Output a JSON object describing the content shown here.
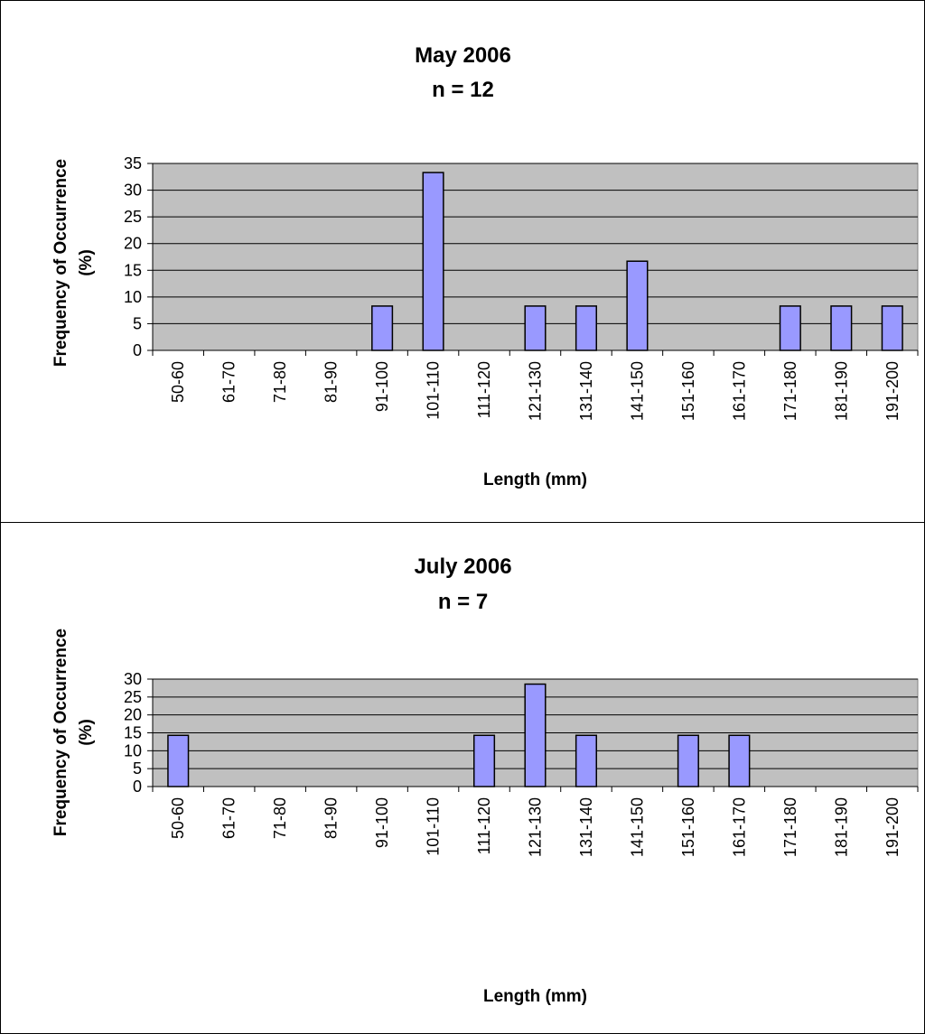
{
  "chart_data": [
    {
      "type": "bar",
      "title": "May 2006",
      "subtitle": "n = 12",
      "xlabel": "Length (mm)",
      "ylabel_line1": "Frequency of Occurrence",
      "ylabel_line2": "(%)",
      "categories": [
        "50-60",
        "61-70",
        "71-80",
        "81-90",
        "91-100",
        "101-110",
        "111-120",
        "121-130",
        "131-140",
        "141-150",
        "151-160",
        "161-170",
        "171-180",
        "181-190",
        "191-200"
      ],
      "values": [
        0,
        0,
        0,
        0,
        8.3,
        33.3,
        0,
        8.3,
        8.3,
        16.7,
        0,
        0,
        8.3,
        8.3,
        8.3
      ],
      "ylim": [
        0,
        35
      ],
      "yticks": [
        0,
        5,
        10,
        15,
        20,
        25,
        30,
        35
      ],
      "grid": true,
      "colors": {
        "bar": "#9999ff",
        "plot_area": "#c0c0c0",
        "border": "#000000"
      }
    },
    {
      "type": "bar",
      "title": "July 2006",
      "subtitle": "n = 7",
      "xlabel": "Length (mm)",
      "ylabel_line1": "Frequency of Occurrence",
      "ylabel_line2": "(%)",
      "categories": [
        "50-60",
        "61-70",
        "71-80",
        "81-90",
        "91-100",
        "101-110",
        "111-120",
        "121-130",
        "131-140",
        "141-150",
        "151-160",
        "161-170",
        "171-180",
        "181-190",
        "191-200"
      ],
      "values": [
        14.3,
        0,
        0,
        0,
        0,
        0,
        14.3,
        28.6,
        14.3,
        0,
        14.3,
        14.3,
        0,
        0,
        0
      ],
      "ylim": [
        0,
        30
      ],
      "yticks": [
        0,
        5,
        10,
        15,
        20,
        25,
        30
      ],
      "grid": true,
      "colors": {
        "bar": "#9999ff",
        "plot_area": "#c0c0c0",
        "border": "#000000"
      }
    }
  ]
}
